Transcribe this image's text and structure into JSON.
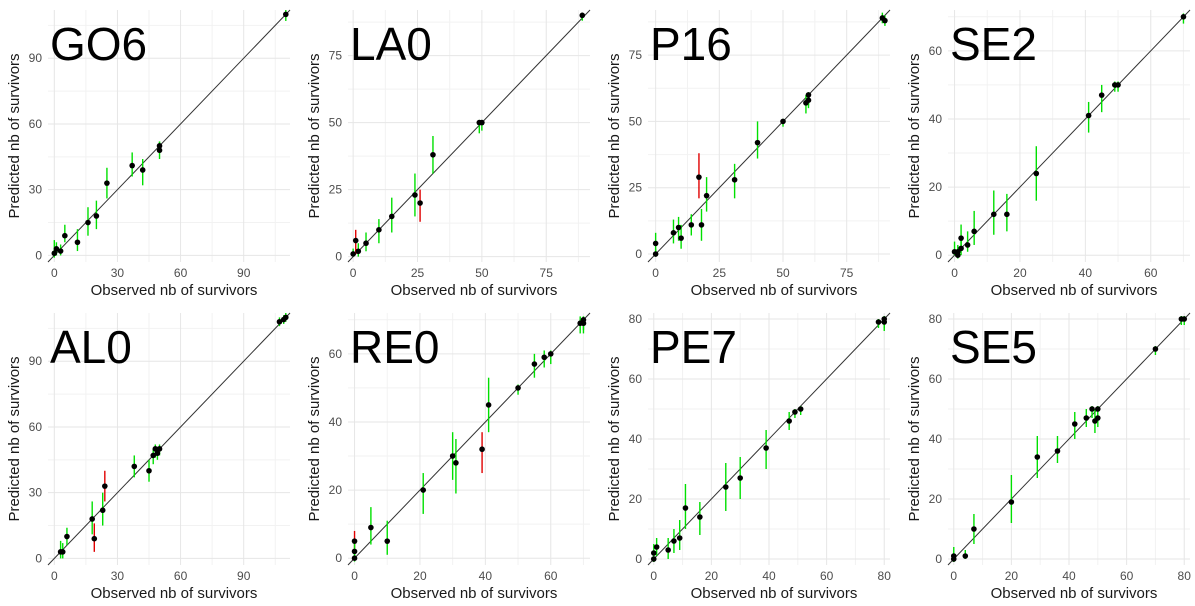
{
  "chart_data": [
    {
      "type": "scatter",
      "title": "GO6",
      "xlabel": "Observed nb of survivors",
      "ylabel": "Predicted nb of survivors",
      "xlim": [
        -3,
        112
      ],
      "ylim": [
        -3,
        112
      ],
      "xticks": [
        0,
        30,
        60,
        90
      ],
      "yticks": [
        0,
        30,
        60,
        90
      ],
      "identity_line": true,
      "points": [
        {
          "x": 0,
          "y": 1,
          "lo": -1,
          "hi": 7,
          "color": "#00e000"
        },
        {
          "x": 1,
          "y": 3,
          "lo": 0,
          "hi": 6,
          "color": "#00e000"
        },
        {
          "x": 3,
          "y": 2,
          "lo": 0,
          "hi": 5,
          "color": "#00e000"
        },
        {
          "x": 5,
          "y": 9,
          "lo": 6,
          "hi": 14,
          "color": "#00e000"
        },
        {
          "x": 11,
          "y": 6,
          "lo": 2,
          "hi": 12,
          "color": "#00e000"
        },
        {
          "x": 16,
          "y": 15,
          "lo": 9,
          "hi": 22,
          "color": "#00e000"
        },
        {
          "x": 20,
          "y": 18,
          "lo": 12,
          "hi": 25,
          "color": "#00e000"
        },
        {
          "x": 25,
          "y": 33,
          "lo": 26,
          "hi": 40,
          "color": "#00e000"
        },
        {
          "x": 37,
          "y": 41,
          "lo": 36,
          "hi": 47,
          "color": "#00e000"
        },
        {
          "x": 42,
          "y": 39,
          "lo": 32,
          "hi": 44,
          "color": "#00e000"
        },
        {
          "x": 50,
          "y": 48,
          "lo": 44,
          "hi": 52,
          "color": "#00e000"
        },
        {
          "x": 50,
          "y": 50,
          "lo": 47,
          "hi": 52,
          "color": "#00e000"
        },
        {
          "x": 110,
          "y": 110,
          "lo": 107,
          "hi": 112,
          "color": "#00e000"
        }
      ]
    },
    {
      "type": "scatter",
      "title": "LA0",
      "xlabel": "Observed nb of survivors",
      "ylabel": "Predicted nb of survivors",
      "xlim": [
        -2,
        92
      ],
      "ylim": [
        -2,
        92
      ],
      "xticks": [
        0,
        25,
        50,
        75
      ],
      "yticks": [
        0,
        25,
        50,
        75
      ],
      "identity_line": true,
      "points": [
        {
          "x": 0,
          "y": 1,
          "lo": 0,
          "hi": 3,
          "color": "#00e000"
        },
        {
          "x": 1,
          "y": 6,
          "lo": 1,
          "hi": 10,
          "color": "#e00000"
        },
        {
          "x": 2,
          "y": 2,
          "lo": 0,
          "hi": 5,
          "color": "#00e000"
        },
        {
          "x": 5,
          "y": 5,
          "lo": 2,
          "hi": 9,
          "color": "#00e000"
        },
        {
          "x": 10,
          "y": 10,
          "lo": 5,
          "hi": 14,
          "color": "#00e000"
        },
        {
          "x": 15,
          "y": 15,
          "lo": 9,
          "hi": 22,
          "color": "#00e000"
        },
        {
          "x": 24,
          "y": 23,
          "lo": 15,
          "hi": 31,
          "color": "#00e000"
        },
        {
          "x": 26,
          "y": 20,
          "lo": 13,
          "hi": 25,
          "color": "#e00000"
        },
        {
          "x": 31,
          "y": 38,
          "lo": 31,
          "hi": 45,
          "color": "#00e000"
        },
        {
          "x": 49,
          "y": 50,
          "lo": 46,
          "hi": 51,
          "color": "#00e000"
        },
        {
          "x": 50,
          "y": 50,
          "lo": 47,
          "hi": 51,
          "color": "#00e000"
        },
        {
          "x": 89,
          "y": 90,
          "lo": 88,
          "hi": 91,
          "color": "#00e000"
        }
      ]
    },
    {
      "type": "scatter",
      "title": "P16",
      "xlabel": "Observed nb of survivors",
      "ylabel": "Predicted nb of survivors",
      "xlim": [
        -3,
        92
      ],
      "ylim": [
        -3,
        92
      ],
      "xticks": [
        0,
        25,
        50,
        75
      ],
      "yticks": [
        0,
        25,
        50,
        75
      ],
      "identity_line": true,
      "points": [
        {
          "x": 0,
          "y": 4,
          "lo": 0,
          "hi": 8,
          "color": "#00e000"
        },
        {
          "x": 0,
          "y": 0,
          "lo": -1,
          "hi": 2,
          "color": "#00e000"
        },
        {
          "x": 7,
          "y": 8,
          "lo": 4,
          "hi": 13,
          "color": "#00e000"
        },
        {
          "x": 9,
          "y": 10,
          "lo": 5,
          "hi": 14,
          "color": "#00e000"
        },
        {
          "x": 10,
          "y": 6,
          "lo": 2,
          "hi": 11,
          "color": "#00e000"
        },
        {
          "x": 14,
          "y": 11,
          "lo": 7,
          "hi": 15,
          "color": "#00e000"
        },
        {
          "x": 17,
          "y": 29,
          "lo": 21,
          "hi": 38,
          "color": "#e00000"
        },
        {
          "x": 18,
          "y": 11,
          "lo": 5,
          "hi": 17,
          "color": "#00e000"
        },
        {
          "x": 20,
          "y": 22,
          "lo": 16,
          "hi": 29,
          "color": "#00e000"
        },
        {
          "x": 31,
          "y": 28,
          "lo": 21,
          "hi": 34,
          "color": "#00e000"
        },
        {
          "x": 40,
          "y": 42,
          "lo": 36,
          "hi": 50,
          "color": "#00e000"
        },
        {
          "x": 50,
          "y": 50,
          "lo": 48,
          "hi": 51,
          "color": "#00e000"
        },
        {
          "x": 59,
          "y": 57,
          "lo": 53,
          "hi": 60,
          "color": "#00e000"
        },
        {
          "x": 60,
          "y": 60,
          "lo": 56,
          "hi": 61,
          "color": "#00e000"
        },
        {
          "x": 60,
          "y": 58,
          "lo": 55,
          "hi": 61,
          "color": "#00e000"
        },
        {
          "x": 89,
          "y": 89,
          "lo": 87,
          "hi": 91,
          "color": "#00e000"
        },
        {
          "x": 90,
          "y": 88,
          "lo": 86,
          "hi": 90,
          "color": "#00e000"
        }
      ]
    },
    {
      "type": "scatter",
      "title": "SE2",
      "xlabel": "Observed nb of survivors",
      "ylabel": "Predicted nb of survivors",
      "xlim": [
        -2,
        72
      ],
      "ylim": [
        -2,
        72
      ],
      "xticks": [
        0,
        20,
        40,
        60
      ],
      "yticks": [
        0,
        20,
        40,
        60
      ],
      "identity_line": true,
      "points": [
        {
          "x": 0,
          "y": 1,
          "lo": 0,
          "hi": 4,
          "color": "#00e000"
        },
        {
          "x": 1,
          "y": 0,
          "lo": -1,
          "hi": 2,
          "color": "#00e000"
        },
        {
          "x": 1,
          "y": 1,
          "lo": 0,
          "hi": 3,
          "color": "#00e000"
        },
        {
          "x": 2,
          "y": 5,
          "lo": 2,
          "hi": 9,
          "color": "#00e000"
        },
        {
          "x": 2,
          "y": 2,
          "lo": 0,
          "hi": 5,
          "color": "#00e000"
        },
        {
          "x": 4,
          "y": 3,
          "lo": 1,
          "hi": 7,
          "color": "#00e000"
        },
        {
          "x": 6,
          "y": 7,
          "lo": 3,
          "hi": 13,
          "color": "#00e000"
        },
        {
          "x": 12,
          "y": 12,
          "lo": 6,
          "hi": 19,
          "color": "#00e000"
        },
        {
          "x": 16,
          "y": 12,
          "lo": 7,
          "hi": 18,
          "color": "#00e000"
        },
        {
          "x": 25,
          "y": 24,
          "lo": 16,
          "hi": 32,
          "color": "#00e000"
        },
        {
          "x": 41,
          "y": 41,
          "lo": 36,
          "hi": 45,
          "color": "#00e000"
        },
        {
          "x": 45,
          "y": 47,
          "lo": 42,
          "hi": 50,
          "color": "#00e000"
        },
        {
          "x": 49,
          "y": 50,
          "lo": 48,
          "hi": 51,
          "color": "#00e000"
        },
        {
          "x": 50,
          "y": 50,
          "lo": 48,
          "hi": 51,
          "color": "#00e000"
        },
        {
          "x": 70,
          "y": 70,
          "lo": 68,
          "hi": 71,
          "color": "#00e000"
        }
      ]
    },
    {
      "type": "scatter",
      "title": "AL0",
      "xlabel": "Observed nb of survivors",
      "ylabel": "Predicted nb of survivors",
      "xlim": [
        -3,
        112
      ],
      "ylim": [
        -3,
        112
      ],
      "xticks": [
        0,
        30,
        60,
        90
      ],
      "yticks": [
        0,
        30,
        60,
        90
      ],
      "identity_line": true,
      "points": [
        {
          "x": 3,
          "y": 3,
          "lo": 0,
          "hi": 8,
          "color": "#00e000"
        },
        {
          "x": 4,
          "y": 3,
          "lo": 0,
          "hi": 7,
          "color": "#00e000"
        },
        {
          "x": 6,
          "y": 10,
          "lo": 6,
          "hi": 14,
          "color": "#00e000"
        },
        {
          "x": 18,
          "y": 18,
          "lo": 11,
          "hi": 26,
          "color": "#00e000"
        },
        {
          "x": 19,
          "y": 9,
          "lo": 3,
          "hi": 16,
          "color": "#e00000"
        },
        {
          "x": 23,
          "y": 22,
          "lo": 15,
          "hi": 30,
          "color": "#00e000"
        },
        {
          "x": 24,
          "y": 33,
          "lo": 26,
          "hi": 40,
          "color": "#e00000"
        },
        {
          "x": 38,
          "y": 42,
          "lo": 37,
          "hi": 47,
          "color": "#00e000"
        },
        {
          "x": 45,
          "y": 40,
          "lo": 35,
          "hi": 45,
          "color": "#00e000"
        },
        {
          "x": 47,
          "y": 47,
          "lo": 43,
          "hi": 50,
          "color": "#00e000"
        },
        {
          "x": 48,
          "y": 50,
          "lo": 46,
          "hi": 52,
          "color": "#00e000"
        },
        {
          "x": 49,
          "y": 48,
          "lo": 45,
          "hi": 51,
          "color": "#00e000"
        },
        {
          "x": 50,
          "y": 50,
          "lo": 47,
          "hi": 52,
          "color": "#00e000"
        },
        {
          "x": 107,
          "y": 108,
          "lo": 106,
          "hi": 110,
          "color": "#00e000"
        },
        {
          "x": 109,
          "y": 109,
          "lo": 107,
          "hi": 111,
          "color": "#00e000"
        },
        {
          "x": 110,
          "y": 110,
          "lo": 108,
          "hi": 112,
          "color": "#00e000"
        }
      ]
    },
    {
      "type": "scatter",
      "title": "RE0",
      "xlabel": "Observed nb of survivors",
      "ylabel": "Predicted nb of survivors",
      "xlim": [
        -2,
        72
      ],
      "ylim": [
        -2,
        72
      ],
      "xticks": [
        0,
        20,
        40,
        60
      ],
      "yticks": [
        0,
        20,
        40,
        60
      ],
      "identity_line": true,
      "points": [
        {
          "x": 0,
          "y": 5,
          "lo": 2,
          "hi": 8,
          "color": "#e00000"
        },
        {
          "x": 0,
          "y": 2,
          "lo": 0,
          "hi": 5,
          "color": "#00e000"
        },
        {
          "x": 0,
          "y": 0,
          "lo": -1,
          "hi": 2,
          "color": "#00e000"
        },
        {
          "x": 5,
          "y": 9,
          "lo": 4,
          "hi": 15,
          "color": "#00e000"
        },
        {
          "x": 10,
          "y": 5,
          "lo": 1,
          "hi": 11,
          "color": "#00e000"
        },
        {
          "x": 21,
          "y": 20,
          "lo": 13,
          "hi": 25,
          "color": "#00e000"
        },
        {
          "x": 30,
          "y": 30,
          "lo": 23,
          "hi": 37,
          "color": "#00e000"
        },
        {
          "x": 31,
          "y": 28,
          "lo": 19,
          "hi": 35,
          "color": "#00e000"
        },
        {
          "x": 39,
          "y": 32,
          "lo": 25,
          "hi": 37,
          "color": "#e00000"
        },
        {
          "x": 41,
          "y": 45,
          "lo": 37,
          "hi": 53,
          "color": "#00e000"
        },
        {
          "x": 50,
          "y": 50,
          "lo": 48,
          "hi": 51,
          "color": "#00e000"
        },
        {
          "x": 55,
          "y": 57,
          "lo": 53,
          "hi": 60,
          "color": "#00e000"
        },
        {
          "x": 58,
          "y": 59,
          "lo": 56,
          "hi": 61,
          "color": "#00e000"
        },
        {
          "x": 60,
          "y": 60,
          "lo": 57,
          "hi": 61,
          "color": "#00e000"
        },
        {
          "x": 69,
          "y": 69,
          "lo": 66,
          "hi": 71,
          "color": "#00e000"
        },
        {
          "x": 70,
          "y": 70,
          "lo": 67,
          "hi": 71,
          "color": "#00e000"
        },
        {
          "x": 70,
          "y": 69,
          "lo": 66,
          "hi": 71,
          "color": "#00e000"
        }
      ]
    },
    {
      "type": "scatter",
      "title": "PE7",
      "xlabel": "Observed nb of survivors",
      "ylabel": "Predicted nb of survivors",
      "xlim": [
        -2,
        82
      ],
      "ylim": [
        -2,
        82
      ],
      "xticks": [
        0,
        20,
        40,
        60,
        80
      ],
      "yticks": [
        0,
        20,
        40,
        60,
        80
      ],
      "identity_line": true,
      "points": [
        {
          "x": 0,
          "y": 0,
          "lo": -1,
          "hi": 2,
          "color": "#00e000"
        },
        {
          "x": 0,
          "y": 2,
          "lo": 0,
          "hi": 5,
          "color": "#00e000"
        },
        {
          "x": 1,
          "y": 4,
          "lo": 1,
          "hi": 7,
          "color": "#00e000"
        },
        {
          "x": 5,
          "y": 3,
          "lo": 0,
          "hi": 7,
          "color": "#00e000"
        },
        {
          "x": 7,
          "y": 6,
          "lo": 2,
          "hi": 10,
          "color": "#00e000"
        },
        {
          "x": 9,
          "y": 7,
          "lo": 3,
          "hi": 13,
          "color": "#00e000"
        },
        {
          "x": 11,
          "y": 17,
          "lo": 10,
          "hi": 25,
          "color": "#00e000"
        },
        {
          "x": 16,
          "y": 14,
          "lo": 8,
          "hi": 19,
          "color": "#00e000"
        },
        {
          "x": 25,
          "y": 24,
          "lo": 16,
          "hi": 32,
          "color": "#00e000"
        },
        {
          "x": 30,
          "y": 27,
          "lo": 20,
          "hi": 34,
          "color": "#00e000"
        },
        {
          "x": 39,
          "y": 37,
          "lo": 30,
          "hi": 43,
          "color": "#00e000"
        },
        {
          "x": 47,
          "y": 46,
          "lo": 43,
          "hi": 49,
          "color": "#00e000"
        },
        {
          "x": 49,
          "y": 49,
          "lo": 47,
          "hi": 50,
          "color": "#00e000"
        },
        {
          "x": 51,
          "y": 50,
          "lo": 48,
          "hi": 51,
          "color": "#00e000"
        },
        {
          "x": 78,
          "y": 79,
          "lo": 77,
          "hi": 80,
          "color": "#00e000"
        },
        {
          "x": 80,
          "y": 80,
          "lo": 77,
          "hi": 81,
          "color": "#00e000"
        },
        {
          "x": 80,
          "y": 79,
          "lo": 76,
          "hi": 80,
          "color": "#00e000"
        }
      ]
    },
    {
      "type": "scatter",
      "title": "SE5",
      "xlabel": "Observed nb of survivors",
      "ylabel": "Predicted nb of survivors",
      "xlim": [
        -2,
        82
      ],
      "ylim": [
        -2,
        82
      ],
      "xticks": [
        0,
        20,
        40,
        60,
        80
      ],
      "yticks": [
        0,
        20,
        40,
        60,
        80
      ],
      "identity_line": true,
      "points": [
        {
          "x": 0,
          "y": 1,
          "lo": 0,
          "hi": 4,
          "color": "#00e000"
        },
        {
          "x": 0,
          "y": 0,
          "lo": -1,
          "hi": 2,
          "color": "#00e000"
        },
        {
          "x": 4,
          "y": 1,
          "lo": 0,
          "hi": 3,
          "color": "#00e000"
        },
        {
          "x": 7,
          "y": 10,
          "lo": 5,
          "hi": 15,
          "color": "#00e000"
        },
        {
          "x": 20,
          "y": 19,
          "lo": 12,
          "hi": 28,
          "color": "#00e000"
        },
        {
          "x": 29,
          "y": 34,
          "lo": 27,
          "hi": 41,
          "color": "#00e000"
        },
        {
          "x": 36,
          "y": 36,
          "lo": 32,
          "hi": 41,
          "color": "#00e000"
        },
        {
          "x": 42,
          "y": 45,
          "lo": 40,
          "hi": 49,
          "color": "#00e000"
        },
        {
          "x": 46,
          "y": 47,
          "lo": 44,
          "hi": 50,
          "color": "#00e000"
        },
        {
          "x": 48,
          "y": 50,
          "lo": 47,
          "hi": 51,
          "color": "#00e000"
        },
        {
          "x": 49,
          "y": 46,
          "lo": 42,
          "hi": 50,
          "color": "#00e000"
        },
        {
          "x": 50,
          "y": 50,
          "lo": 47,
          "hi": 51,
          "color": "#00e000"
        },
        {
          "x": 50,
          "y": 47,
          "lo": 44,
          "hi": 50,
          "color": "#00e000"
        },
        {
          "x": 70,
          "y": 70,
          "lo": 68,
          "hi": 71,
          "color": "#00e000"
        },
        {
          "x": 79,
          "y": 80,
          "lo": 78,
          "hi": 81,
          "color": "#00e000"
        },
        {
          "x": 80,
          "y": 80,
          "lo": 78,
          "hi": 81,
          "color": "#00e000"
        }
      ]
    }
  ],
  "colors": {
    "grid": "#e6e6e6",
    "axis_text": "#4d4d4d",
    "label_text": "#1a1a1a",
    "identity_line": "#333333",
    "point": "#000000"
  }
}
